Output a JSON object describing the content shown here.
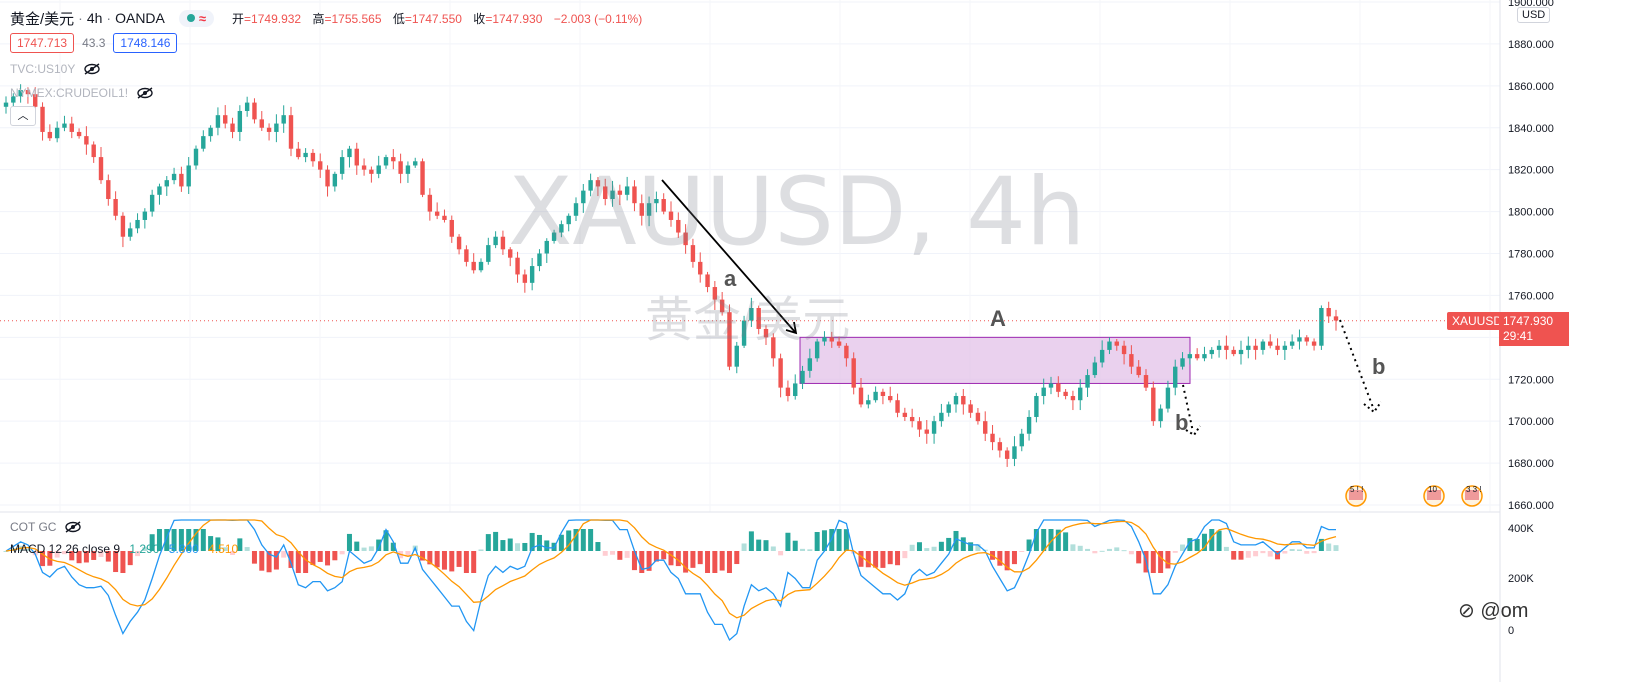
{
  "header": {
    "symbol": "黄金/美元",
    "interval": "4h",
    "exchange": "OANDA",
    "wave_icon": "≈",
    "open_label": "开",
    "open": "=1749.932",
    "high_label": "高",
    "high": "=1755.565",
    "low_label": "低",
    "low": "=1747.550",
    "close_label": "收",
    "close": "=1747.930",
    "change": "−2.003 (−0.11%)",
    "bid": "1747.713",
    "spread": "43.3",
    "ask": "1748.146"
  },
  "indicators": {
    "overlay1": "TVC:US10Y",
    "overlay2": "NYMEX:CRUDEOIL1!",
    "collapse_icon": "chevron-up-icon"
  },
  "watermark": {
    "symbol": "XAUUSD, 4h",
    "name": "黄金/美元"
  },
  "annotations": {
    "a": "a",
    "A": "A",
    "b1": "b",
    "b2": "b"
  },
  "price_axis": {
    "currency": "USD",
    "last_symbol": "XAUUSD",
    "last_price": "1747.930",
    "countdown": "29:41"
  },
  "macd_panel": {
    "cot": "COT GC",
    "name": "MACD 12 26 close 9",
    "hist": "1.290",
    "macd": "5.800",
    "signal": "4.510",
    "axis_labels": [
      "400K",
      "200K",
      "0"
    ]
  },
  "events": [
    {
      "label": "5 ! !"
    },
    {
      "label": "10"
    },
    {
      "label": "3 3 !"
    }
  ],
  "brand": "⊘ @om",
  "colors": {
    "up": "#26a69a",
    "down": "#ef5350",
    "macd_line": "#2196f3",
    "signal_line": "#ff9800",
    "zone_fill": "#e1bee7",
    "zone_border": "#9c27b0"
  },
  "chart_data": {
    "type": "candlestick",
    "title": "",
    "ylim": [
      1655,
      1903
    ],
    "yticks": [
      1660,
      1680,
      1700,
      1720,
      1740,
      1760,
      1780,
      1800,
      1820,
      1840,
      1860,
      1880,
      1900
    ],
    "ytick_labels": [
      "1660.000",
      "1680.000",
      "1700.000",
      "1720.000",
      "1740.000",
      "1760.000",
      "1780.000",
      "1800.000",
      "1820.000",
      "1840.000",
      "1860.000",
      "1880.000",
      "1900.000"
    ],
    "close_path": [
      1852,
      1855,
      1858,
      1856,
      1850,
      1838,
      1835,
      1840,
      1842,
      1838,
      1836,
      1832,
      1826,
      1815,
      1806,
      1798,
      1788,
      1792,
      1796,
      1800,
      1808,
      1812,
      1815,
      1818,
      1812,
      1822,
      1830,
      1836,
      1840,
      1846,
      1842,
      1838,
      1848,
      1852,
      1844,
      1840,
      1838,
      1842,
      1846,
      1830,
      1826,
      1828,
      1824,
      1820,
      1812,
      1818,
      1826,
      1830,
      1822,
      1820,
      1818,
      1822,
      1826,
      1824,
      1818,
      1822,
      1824,
      1808,
      1800,
      1798,
      1796,
      1788,
      1782,
      1776,
      1772,
      1776,
      1784,
      1788,
      1782,
      1778,
      1770,
      1766,
      1774,
      1780,
      1786,
      1790,
      1794,
      1798,
      1804,
      1810,
      1815,
      1812,
      1806,
      1810,
      1808,
      1812,
      1804,
      1798,
      1804,
      1806,
      1800,
      1796,
      1790,
      1784,
      1776,
      1770,
      1764,
      1758,
      1752,
      1726,
      1736,
      1748,
      1754,
      1744,
      1740,
      1730,
      1716,
      1712,
      1718,
      1724,
      1730,
      1738,
      1740,
      1738,
      1736,
      1730,
      1716,
      1708,
      1710,
      1714,
      1712,
      1710,
      1704,
      1702,
      1700,
      1696,
      1694,
      1700,
      1704,
      1708,
      1712,
      1708,
      1704,
      1700,
      1694,
      1690,
      1686,
      1682,
      1688,
      1694,
      1702,
      1712,
      1716,
      1718,
      1714,
      1712,
      1710,
      1716,
      1722,
      1728,
      1734,
      1738,
      1736,
      1732,
      1726,
      1722,
      1716,
      1700,
      1706,
      1716,
      1726,
      1730,
      1732,
      1730,
      1732,
      1734,
      1736,
      1734,
      1732,
      1734,
      1736,
      1734,
      1738,
      1736,
      1734,
      1736,
      1738,
      1740,
      1738,
      1736,
      1754,
      1750,
      1748
    ],
    "last_price": 1747.93,
    "zone": {
      "label": "A",
      "price_high": 1740,
      "price_low": 1718
    },
    "macd": {
      "hist": 1.29,
      "macd": 5.8,
      "signal": 4.51
    }
  }
}
